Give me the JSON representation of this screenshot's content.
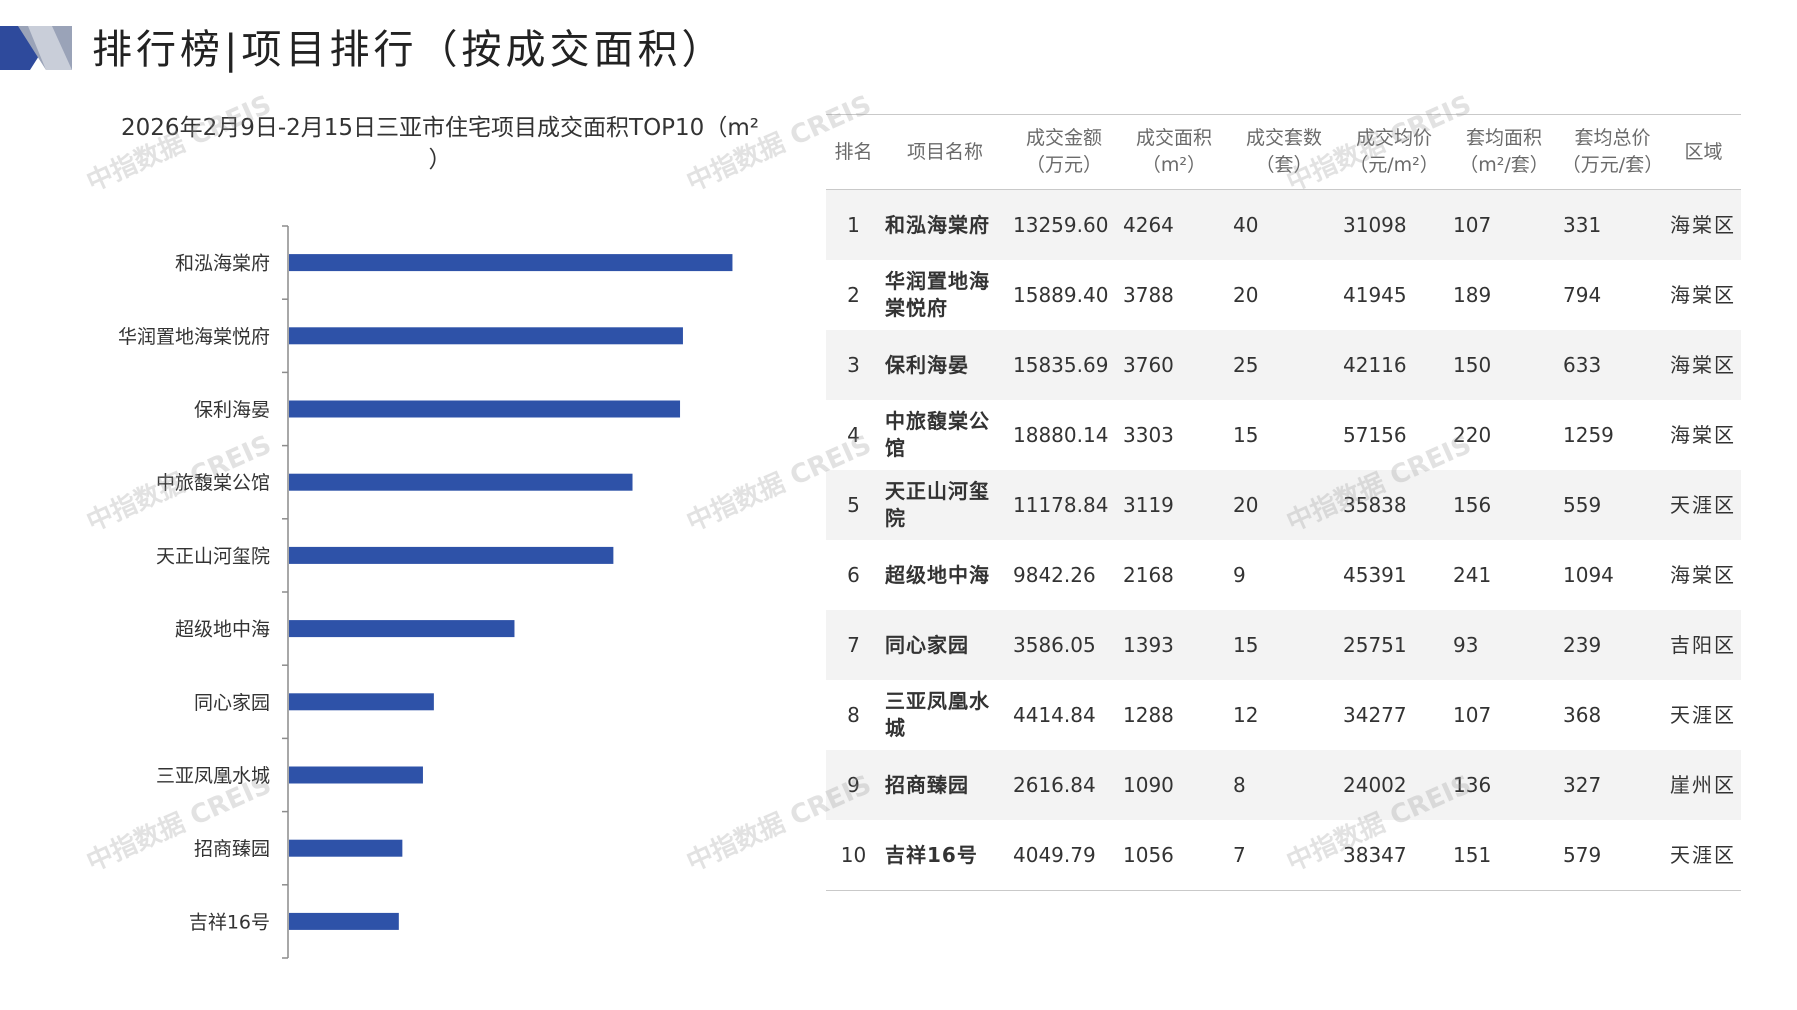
{
  "header": {
    "title": "排行榜|项目排行（按成交面积）",
    "accent_color": "#2e4a9c"
  },
  "watermark": "中指数据 CREIS",
  "chart_data": {
    "type": "bar",
    "orientation": "horizontal",
    "title": "2026年2月9日-2月15日三亚市住宅项目成交面积TOP10（m²\n）",
    "categories": [
      "和泓海棠府",
      "华润置地海棠悦府",
      "保利海晏",
      "中旅馥棠公馆",
      "天正山河玺院",
      "超级地中海",
      "同心家园",
      "三亚凤凰水城",
      "招商臻园",
      "吉祥16号"
    ],
    "values": [
      4264,
      3788,
      3760,
      3303,
      3119,
      2168,
      1393,
      1288,
      1090,
      1056
    ],
    "xlim": [
      0,
      5000
    ],
    "bar_color": "#2e52a8",
    "grid": false,
    "legend": "none"
  },
  "table": {
    "columns": [
      "排名",
      "项目名称",
      "成交金额\n（万元）",
      "成交面积\n（m²）",
      "成交套数\n（套）",
      "成交均价\n（元/m²）",
      "套均面积\n（m²/套）",
      "套均总价\n（万元/套）",
      "区域"
    ],
    "rows": [
      [
        "1",
        "和泓海棠府",
        "13259.60",
        "4264",
        "40",
        "31098",
        "107",
        "331",
        "海棠区"
      ],
      [
        "2",
        "华润置地海棠悦府",
        "15889.40",
        "3788",
        "20",
        "41945",
        "189",
        "794",
        "海棠区"
      ],
      [
        "3",
        "保利海晏",
        "15835.69",
        "3760",
        "25",
        "42116",
        "150",
        "633",
        "海棠区"
      ],
      [
        "4",
        "中旅馥棠公馆",
        "18880.14",
        "3303",
        "15",
        "57156",
        "220",
        "1259",
        "海棠区"
      ],
      [
        "5",
        "天正山河玺院",
        "11178.84",
        "3119",
        "20",
        "35838",
        "156",
        "559",
        "天涯区"
      ],
      [
        "6",
        "超级地中海",
        "9842.26",
        "2168",
        "9",
        "45391",
        "241",
        "1094",
        "海棠区"
      ],
      [
        "7",
        "同心家园",
        "3586.05",
        "1393",
        "15",
        "25751",
        "93",
        "239",
        "吉阳区"
      ],
      [
        "8",
        "三亚凤凰水城",
        "4414.84",
        "1288",
        "12",
        "34277",
        "107",
        "368",
        "天涯区"
      ],
      [
        "9",
        "招商臻园",
        "2616.84",
        "1090",
        "8",
        "24002",
        "136",
        "327",
        "崖州区"
      ],
      [
        "10",
        "吉祥16号",
        "4049.79",
        "1056",
        "7",
        "38347",
        "151",
        "579",
        "天涯区"
      ]
    ]
  }
}
